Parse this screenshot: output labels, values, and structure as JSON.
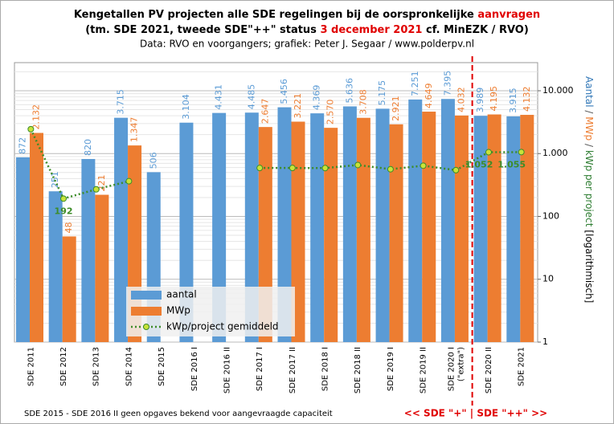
{
  "chart_data": {
    "type": "bar",
    "title_parts": [
      "Kengetallen PV projecten alle SDE regelingen bij de oorspronkelijke",
      "aanvragen"
    ],
    "subtitle_parts": [
      "(tm. SDE 2021, tweede SDE\"++\" status",
      "3 december 2021",
      "cf. MinEZK / RVO)"
    ],
    "source": "Data: RVO en voorgangers; grafiek: Peter J. Segaar / www.polderpv.nl",
    "y_label_parts": [
      "Aantal",
      "/",
      "MWp",
      "/",
      "kWp per project",
      "[logarithmisch]"
    ],
    "footnote": "SDE 2015 - SDE 2016 II geen opgaves bekend voor aangevraagde capaciteit",
    "divider_label": "<<  SDE \"+\"  | SDE \"++\"  >>",
    "categories": [
      "SDE 2011",
      "SDE 2012",
      "SDE 2013",
      "SDE 2014",
      "SDE 2015",
      "SDE 2016 I",
      "SDE 2016 II",
      "SDE 2017 I",
      "SDE 2017 II",
      "SDE 2018 I",
      "SDE 2018 II",
      "SDE 2019 I",
      "SDE 2019 II",
      [
        "SDE 2020 I",
        "(\"extra\")"
      ],
      "SDE 2020 II",
      "SDE 2021"
    ],
    "series": [
      {
        "name": "aantal",
        "color": "#5b9bd5",
        "kind": "bar",
        "values": [
          872,
          251,
          820,
          3715,
          506,
          3104,
          4431,
          4485,
          5456,
          4369,
          5636,
          5175,
          7251,
          7395,
          3989,
          3915
        ],
        "value_labels": [
          "872",
          "251",
          "820",
          "3.715",
          "506",
          "3.104",
          "4.431",
          "4.485",
          "5.456",
          "4.369",
          "5.636",
          "5.175",
          "7.251",
          "7.395",
          "3.989",
          "3.915"
        ]
      },
      {
        "name": "MWp",
        "color": "#ed7d31",
        "kind": "bar",
        "values": [
          2132,
          48,
          221,
          1347,
          null,
          null,
          null,
          2647,
          3221,
          2570,
          3708,
          2921,
          4649,
          4032,
          4195,
          4132
        ],
        "value_labels": [
          "2.132",
          "48",
          "221",
          "1.347",
          null,
          null,
          null,
          "2.647",
          "3.221",
          "2.570",
          "3.708",
          "2.921",
          "4.649",
          "4.032",
          "4.195",
          "4.132"
        ]
      },
      {
        "name": "kWp/project gemiddeld",
        "color": "#3c8c28",
        "kind": "line",
        "values": [
          2445,
          192,
          270,
          363,
          null,
          null,
          null,
          590,
          590,
          588,
          658,
          564,
          641,
          545,
          1052,
          1055
        ],
        "value_labels": [
          null,
          "192",
          null,
          null,
          null,
          null,
          null,
          null,
          null,
          null,
          null,
          null,
          null,
          null,
          "1.052",
          "1.055"
        ]
      }
    ],
    "log_scale": true,
    "grid": true,
    "legend": "bottom-left",
    "ylim": [
      1,
      28000
    ],
    "yticks": [
      1,
      10,
      100,
      {
        "value": 1000,
        "label": "1.000"
      },
      {
        "value": 10000,
        "label": "10.000"
      }
    ]
  }
}
